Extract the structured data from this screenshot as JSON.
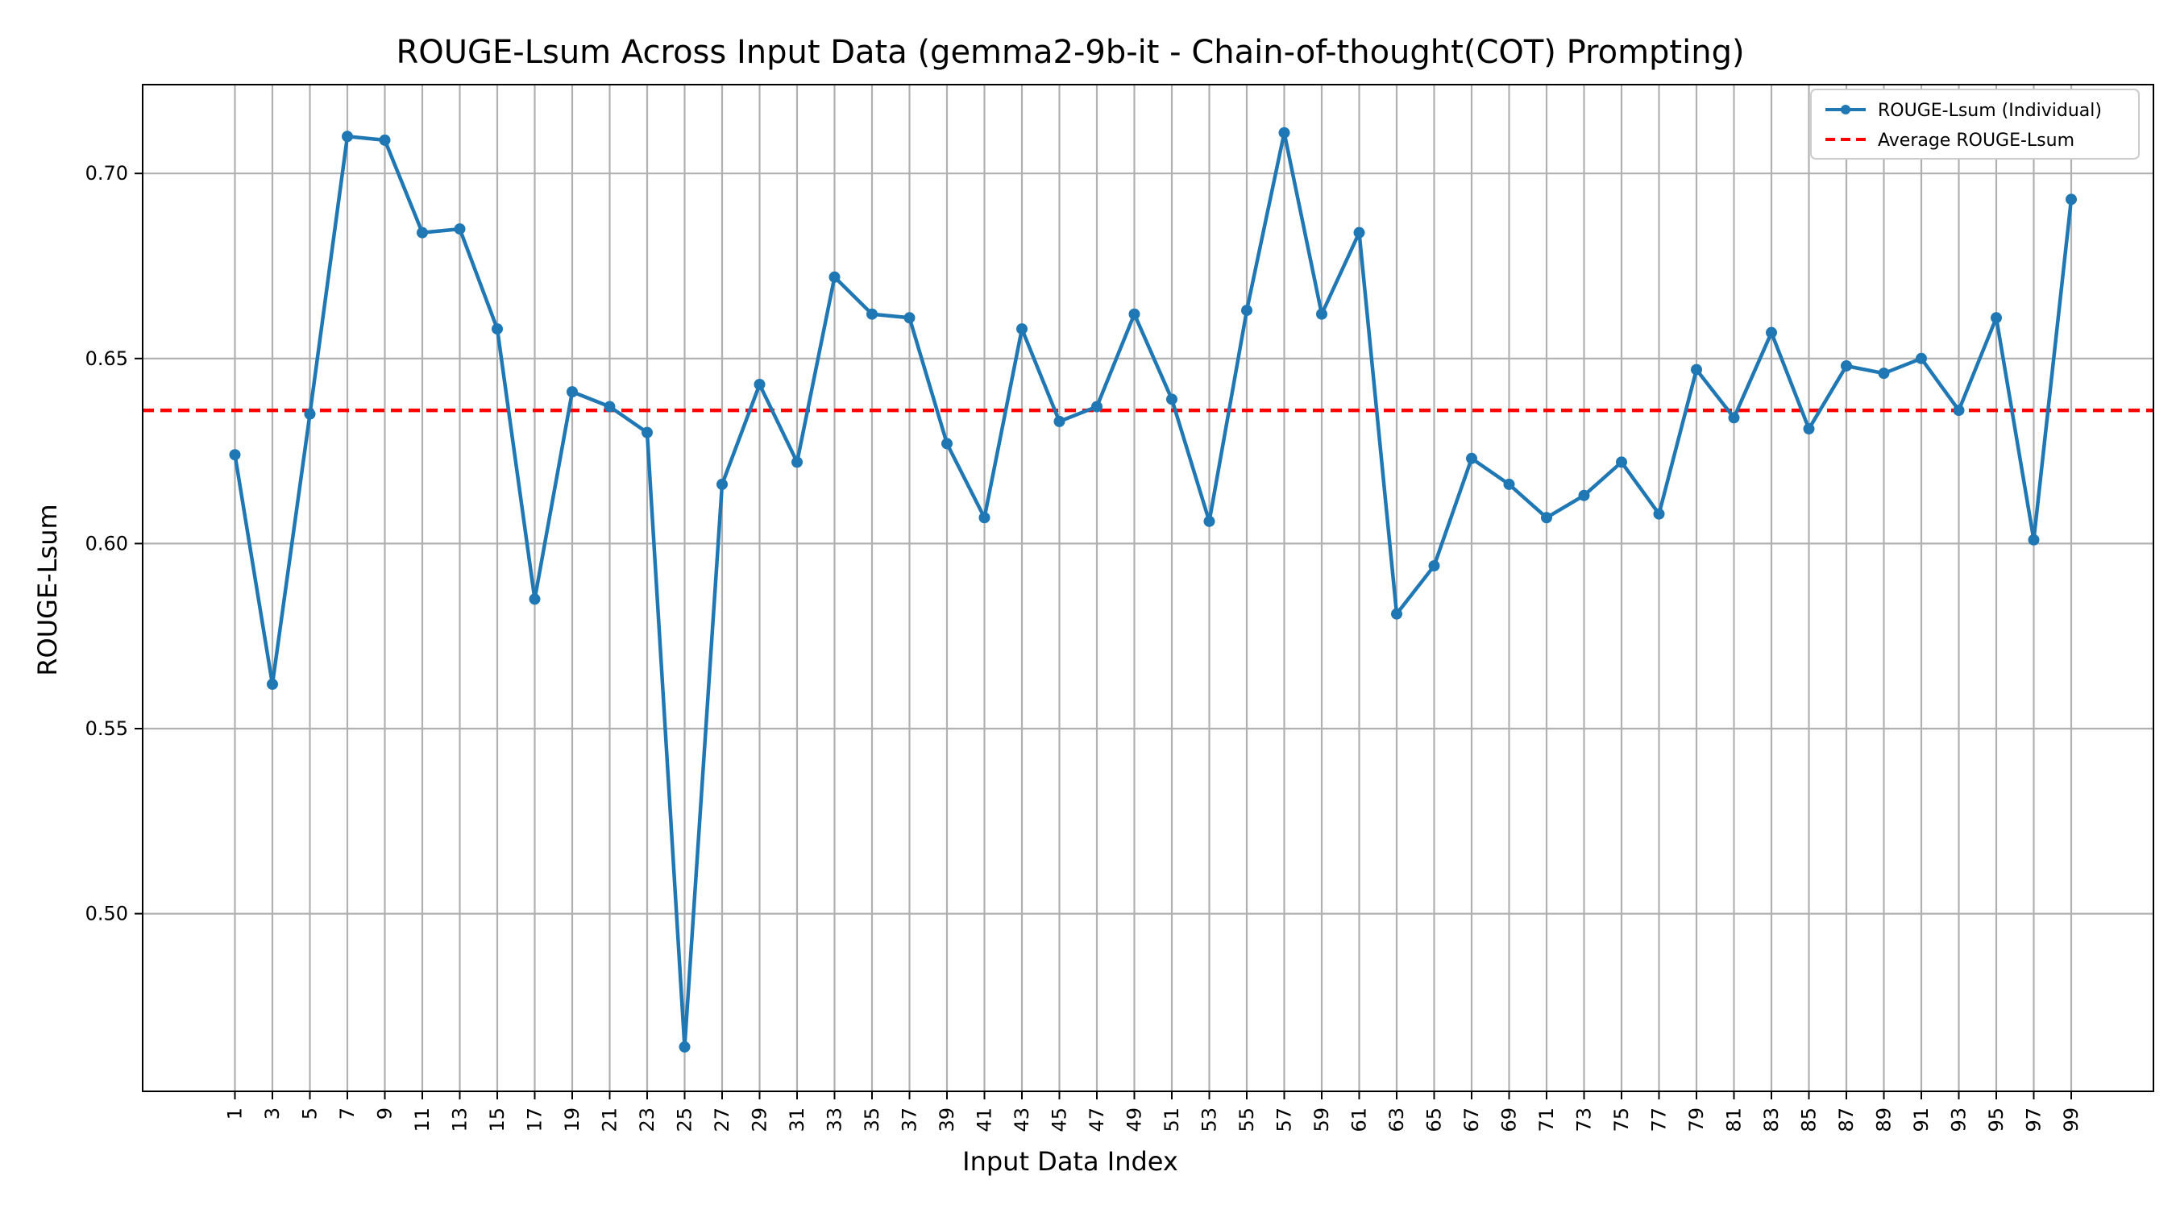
{
  "chart_data": {
    "type": "line",
    "title": "ROUGE-Lsum Across Input Data (gemma2-9b-it - Chain-of-thought(COT) Prompting)",
    "xlabel": "Input Data Index",
    "ylabel": "ROUGE-Lsum",
    "x": [
      1,
      3,
      5,
      7,
      9,
      11,
      13,
      15,
      17,
      19,
      21,
      23,
      25,
      27,
      29,
      31,
      33,
      35,
      37,
      39,
      41,
      43,
      45,
      47,
      49,
      51,
      53,
      55,
      57,
      59,
      61,
      63,
      65,
      67,
      69,
      71,
      73,
      75,
      77,
      79,
      81,
      83,
      85,
      87,
      89,
      91,
      93,
      95,
      97,
      99
    ],
    "x_tick_labels": [
      "1",
      "3",
      "5",
      "7",
      "9",
      "11",
      "13",
      "15",
      "17",
      "19",
      "21",
      "23",
      "25",
      "27",
      "29",
      "31",
      "33",
      "35",
      "37",
      "39",
      "41",
      "43",
      "45",
      "47",
      "49",
      "51",
      "53",
      "55",
      "57",
      "59",
      "61",
      "63",
      "65",
      "67",
      "69",
      "71",
      "73",
      "75",
      "77",
      "79",
      "81",
      "83",
      "85",
      "87",
      "89",
      "91",
      "93",
      "95",
      "97",
      "99"
    ],
    "y_ticks": [
      0.5,
      0.55,
      0.6,
      0.65,
      0.7
    ],
    "y_tick_labels": [
      "0.50",
      "0.55",
      "0.60",
      "0.65",
      "0.70"
    ],
    "ylim": [
      0.452,
      0.724
    ],
    "series": [
      {
        "name": "ROUGE-Lsum (Individual)",
        "color": "#1f77b4",
        "style": "solid-with-markers",
        "values": [
          0.624,
          0.562,
          0.635,
          0.71,
          0.709,
          0.684,
          0.685,
          0.658,
          0.585,
          0.641,
          0.637,
          0.63,
          0.464,
          0.616,
          0.643,
          0.622,
          0.672,
          0.662,
          0.661,
          0.627,
          0.607,
          0.658,
          0.633,
          0.637,
          0.662,
          0.639,
          0.606,
          0.663,
          0.711,
          0.662,
          0.684,
          0.581,
          0.594,
          0.623,
          0.616,
          0.607,
          0.613,
          0.622,
          0.608,
          0.647,
          0.634,
          0.657,
          0.631,
          0.648,
          0.646,
          0.65,
          0.636,
          0.661,
          0.601,
          0.693
        ]
      },
      {
        "name": "Average ROUGE-Lsum",
        "color": "#ff0000",
        "style": "dashed",
        "value": 0.636
      }
    ],
    "grid": true,
    "legend_position": "top-right"
  }
}
